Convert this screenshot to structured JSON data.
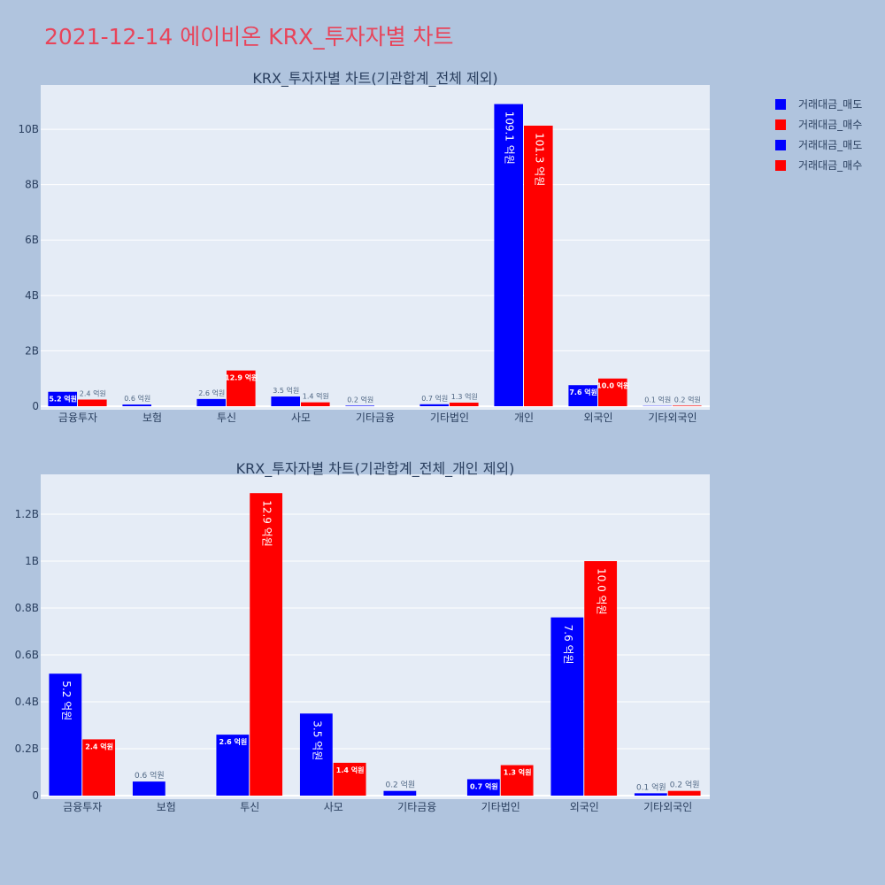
{
  "page_title": "2021-12-14 에이비온 KRX_투자자별 차트",
  "colors": {
    "sell": "#0000ff",
    "buy": "#ff0000",
    "plot_bg": "#e5ecf6",
    "page_bg": "#b0c4de",
    "title": "#e8445a"
  },
  "legend": [
    {
      "name": "거래대금_매도",
      "color": "#0000ff"
    },
    {
      "name": "거래대금_매수",
      "color": "#ff0000"
    },
    {
      "name": "거래대금_매도",
      "color": "#0000ff"
    },
    {
      "name": "거래대금_매수",
      "color": "#ff0000"
    }
  ],
  "chart_data": [
    {
      "type": "bar",
      "title": "KRX_투자자별 차트(기관합계_전체 제외)",
      "categories": [
        "금융투자",
        "보험",
        "투신",
        "사모",
        "기타금융",
        "기타법인",
        "개인",
        "외국인",
        "기타외국인"
      ],
      "ylim": [
        0,
        11600000000
      ],
      "yticks": [
        0,
        2000000000,
        4000000000,
        6000000000,
        8000000000,
        10000000000
      ],
      "ytick_labels": [
        "0",
        "2B",
        "4B",
        "6B",
        "8B",
        "10B"
      ],
      "grid": true,
      "series": [
        {
          "name": "거래대금_매도",
          "color": "#0000ff",
          "values": [
            520000000,
            60000000,
            260000000,
            350000000,
            20000000,
            70000000,
            10910000000,
            760000000,
            10000000
          ],
          "labels": [
            "5.2 억원",
            "0.6 억원",
            "2.6 억원",
            "3.5 억원",
            "0.2 억원",
            "0.7 억원",
            "109.1 억원",
            "7.6 억원",
            "0.1 억원"
          ]
        },
        {
          "name": "거래대금_매수",
          "color": "#ff0000",
          "values": [
            240000000,
            0,
            1290000000,
            140000000,
            0,
            130000000,
            10130000000,
            1000000000,
            20000000
          ],
          "labels": [
            "2.4 억원",
            "",
            "12.9 억원",
            "1.4 억원",
            "",
            "1.3 억원",
            "101.3 억원",
            "10.0 억원",
            "0.2 억원"
          ]
        }
      ]
    },
    {
      "type": "bar",
      "title": "KRX_투자자별 차트(기관합계_전체_개인 제외)",
      "categories": [
        "금융투자",
        "보험",
        "투신",
        "사모",
        "기타금융",
        "기타법인",
        "외국인",
        "기타외국인"
      ],
      "ylim": [
        0,
        1370000000
      ],
      "yticks": [
        0,
        200000000,
        400000000,
        600000000,
        800000000,
        1000000000,
        1200000000
      ],
      "ytick_labels": [
        "0",
        "0.2B",
        "0.4B",
        "0.6B",
        "0.8B",
        "1B",
        "1.2B"
      ],
      "grid": true,
      "series": [
        {
          "name": "거래대금_매도",
          "color": "#0000ff",
          "values": [
            520000000,
            60000000,
            260000000,
            350000000,
            20000000,
            70000000,
            760000000,
            10000000
          ],
          "labels": [
            "5.2 억원",
            "0.6 억원",
            "2.6 억원",
            "3.5 억원",
            "0.2 억원",
            "0.7 억원",
            "7.6 억원",
            "0.1 억원"
          ]
        },
        {
          "name": "거래대금_매수",
          "color": "#ff0000",
          "values": [
            240000000,
            0,
            1290000000,
            140000000,
            0,
            130000000,
            1000000000,
            20000000
          ],
          "labels": [
            "2.4 억원",
            "",
            "12.9 억원",
            "1.4 억원",
            "",
            "1.3 억원",
            "10.0 억원",
            "0.2 억원"
          ]
        }
      ]
    }
  ]
}
